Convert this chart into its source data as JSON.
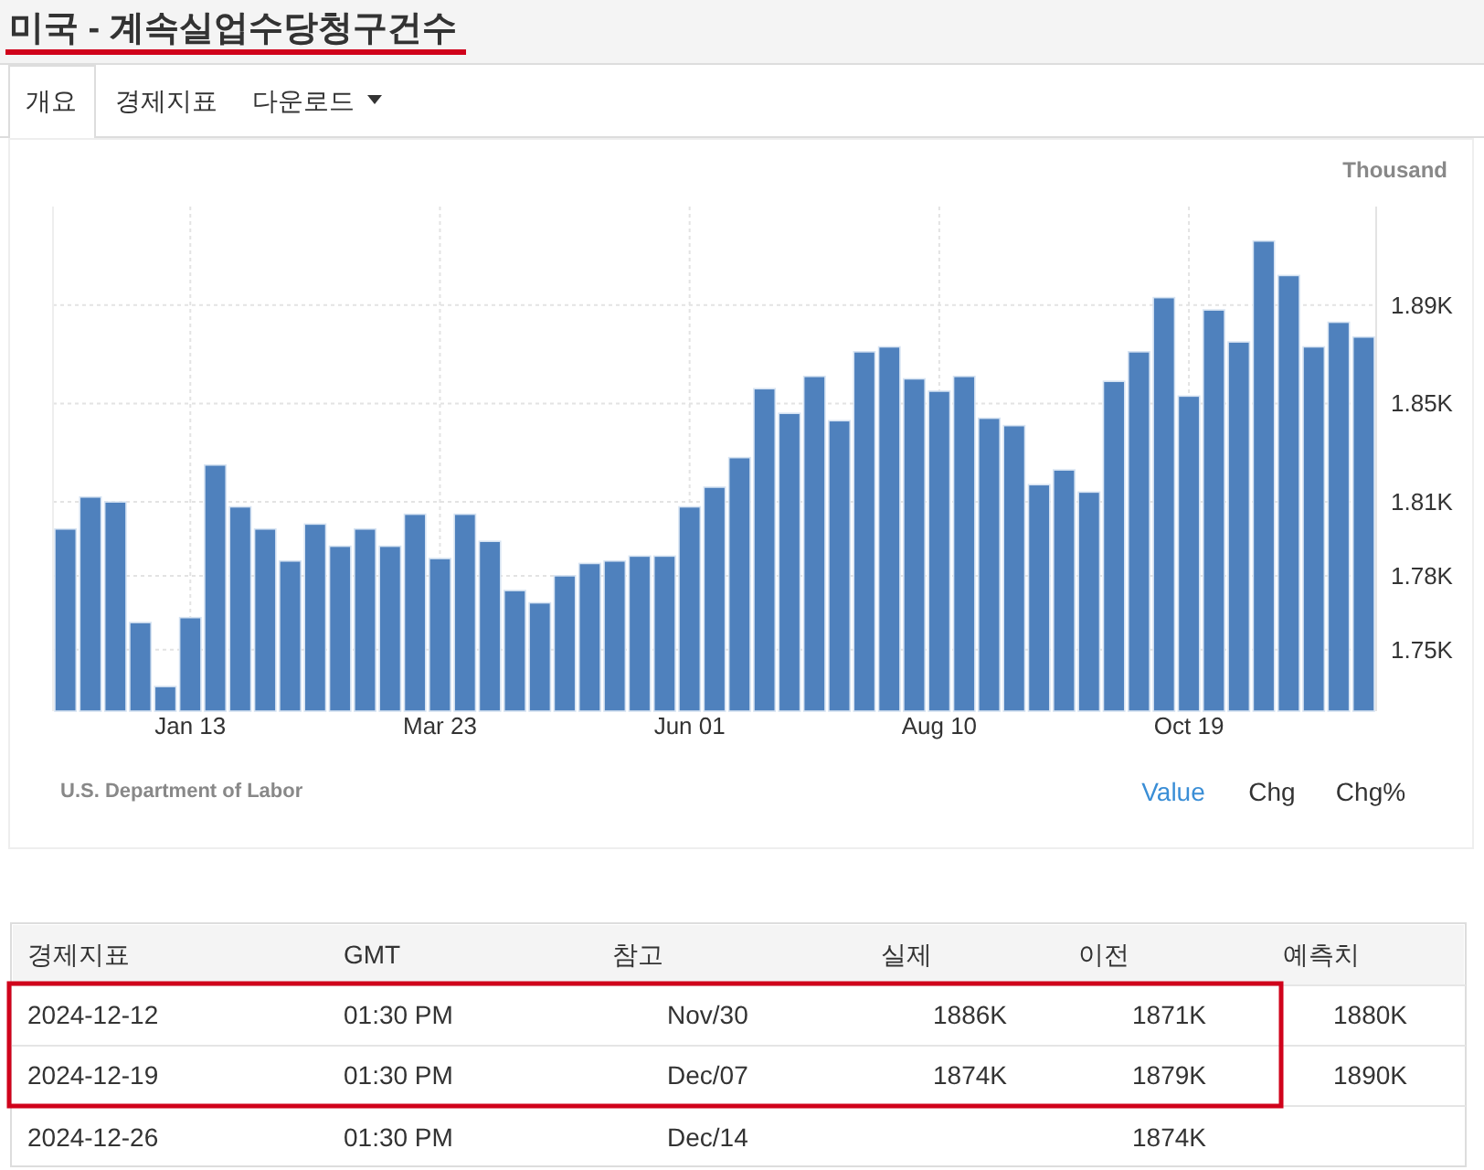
{
  "chart_data": {
    "type": "bar",
    "title": "미국 - 계속실업수당청구건수",
    "ylabel": "Thousand",
    "categories": [
      null,
      null,
      null,
      null,
      null,
      "Jan 13",
      null,
      null,
      null,
      null,
      null,
      null,
      null,
      null,
      null,
      "Mar 23",
      null,
      null,
      null,
      null,
      null,
      null,
      null,
      null,
      null,
      "Jun 01",
      null,
      null,
      null,
      null,
      null,
      null,
      null,
      null,
      null,
      "Aug 10",
      null,
      null,
      null,
      null,
      null,
      null,
      null,
      null,
      null,
      "Oct 19",
      null,
      null,
      null,
      null,
      null,
      null,
      null
    ],
    "values": [
      1799,
      1812,
      1810,
      1761,
      1735,
      1763,
      1825,
      1808,
      1799,
      1786,
      1801,
      1792,
      1799,
      1792,
      1805,
      1787,
      1805,
      1794,
      1774,
      1769,
      1780,
      1785,
      1786,
      1788,
      1788,
      1808,
      1816,
      1828,
      1856,
      1846,
      1861,
      1843,
      1871,
      1873,
      1860,
      1855,
      1861,
      1844,
      1841,
      1817,
      1823,
      1814,
      1859,
      1871,
      1893,
      1853,
      1888,
      1875,
      1916,
      1902,
      1873,
      1883,
      1877
    ],
    "color": "#4f81bd",
    "ylim": [
      1725,
      1930
    ],
    "yticks": [
      {
        "value": 1750,
        "label": "1.75K"
      },
      {
        "value": 1780,
        "label": "1.78K"
      },
      {
        "value": 1810,
        "label": "1.81K"
      },
      {
        "value": 1850,
        "label": "1.85K"
      },
      {
        "value": 1890,
        "label": "1.89K"
      }
    ],
    "grid": true,
    "annotations": [
      "U.S. Department of Labor",
      "개요",
      "경제지표",
      "다운로드",
      "Value",
      "Chg",
      "Chg%",
      "경제지표",
      "GMT",
      "참고",
      "실제",
      "이전",
      "예측치",
      "2024-12-12",
      "01:30 PM",
      "Nov/30",
      "1886K",
      "1871K",
      "1880K",
      "2024-12-19",
      "01:30 PM",
      "Dec/07",
      "1874K",
      "1879K",
      "1890K",
      "2024-12-26",
      "01:30 PM",
      "Dec/14",
      "1874K"
    ]
  }
}
